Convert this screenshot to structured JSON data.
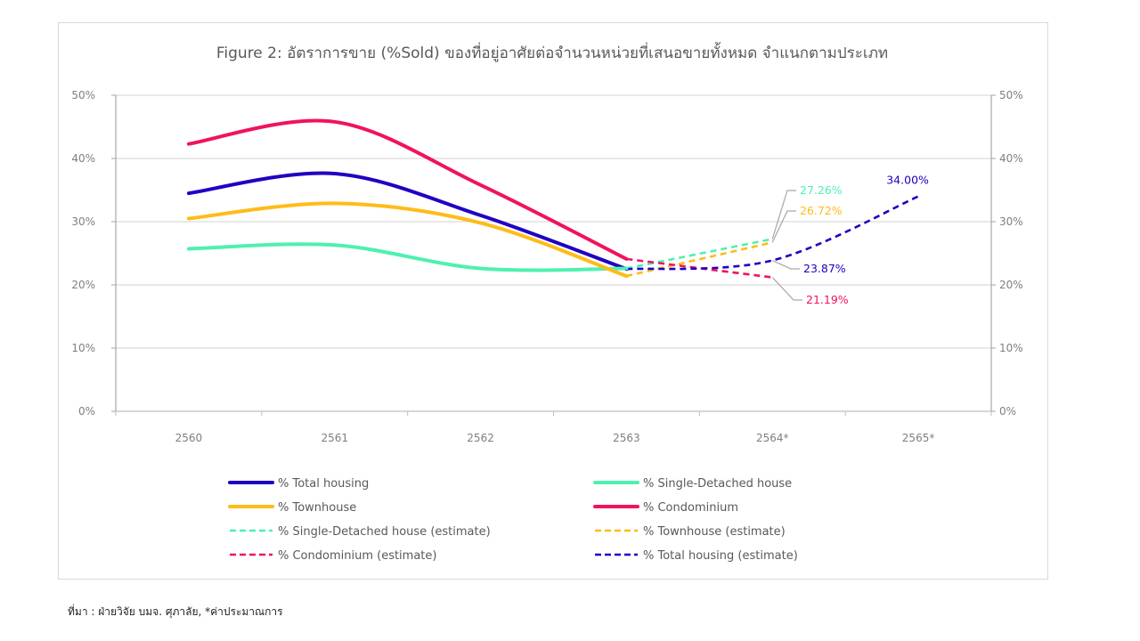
{
  "chart_data": {
    "type": "line",
    "title": "Figure 2: อัตราการขาย (%Sold) ของที่อยู่อาศัยต่อจำนวนหน่วยที่เสนอขายทั้งหมด จำแนกตามประเภท",
    "xlabel": "",
    "ylabel": "",
    "categories": [
      "2560",
      "2561",
      "2562",
      "2563",
      "2564*",
      "2565*"
    ],
    "ylim": [
      0,
      50
    ],
    "yticks": [
      "0%",
      "10%",
      "20%",
      "30%",
      "40%",
      "50%"
    ],
    "ytick_values": [
      0,
      10,
      20,
      30,
      40,
      50
    ],
    "secondary_yaxis": true,
    "grid": true,
    "legend_position": "bottom",
    "series": [
      {
        "name": "% Total housing",
        "color": "#1f00c2",
        "style": "solid",
        "values": [
          34.5,
          37.6,
          31.0,
          22.5,
          null,
          null
        ]
      },
      {
        "name": "% Single-Detached house",
        "color": "#4ff0b0",
        "style": "solid",
        "values": [
          25.7,
          26.3,
          22.6,
          22.6,
          null,
          null
        ]
      },
      {
        "name": "% Townhouse",
        "color": "#ffbb18",
        "style": "solid",
        "values": [
          30.5,
          32.9,
          29.8,
          21.4,
          null,
          null
        ]
      },
      {
        "name": "% Condominium",
        "color": "#f0145a",
        "style": "solid",
        "values": [
          42.3,
          45.8,
          35.8,
          24.1,
          null,
          null
        ]
      },
      {
        "name": "% Single-Detached house (estimate)",
        "color": "#4ff0b0",
        "style": "dashed",
        "values": [
          null,
          null,
          null,
          22.6,
          27.26,
          null
        ]
      },
      {
        "name": "% Townhouse (estimate)",
        "color": "#ffbb18",
        "style": "dashed",
        "values": [
          null,
          null,
          null,
          21.4,
          26.72,
          null
        ]
      },
      {
        "name": "% Condominium (estimate)",
        "color": "#f0145a",
        "style": "dashed",
        "values": [
          null,
          null,
          null,
          24.1,
          21.19,
          null
        ]
      },
      {
        "name": "% Total housing (estimate)",
        "color": "#1f00c2",
        "style": "dashed",
        "values": [
          null,
          null,
          null,
          22.5,
          23.87,
          34.0
        ]
      }
    ],
    "annotations": [
      {
        "text": "27.26%",
        "series": "% Single-Detached house (estimate)",
        "category": "2564*",
        "color": "#4ff0b0"
      },
      {
        "text": "26.72%",
        "series": "% Townhouse (estimate)",
        "category": "2564*",
        "color": "#ffbb18"
      },
      {
        "text": "23.87%",
        "series": "% Total housing (estimate)",
        "category": "2564*",
        "color": "#1f00c2"
      },
      {
        "text": "21.19%",
        "series": "% Condominium (estimate)",
        "category": "2564*",
        "color": "#f0145a"
      },
      {
        "text": "34.00%",
        "series": "% Total housing (estimate)",
        "category": "2565*",
        "color": "#1f00c2"
      }
    ]
  },
  "source_note": "ที่มา : ฝ่ายวิจัย บมจ. ศุภาลัย, *ค่าประมาณการ"
}
